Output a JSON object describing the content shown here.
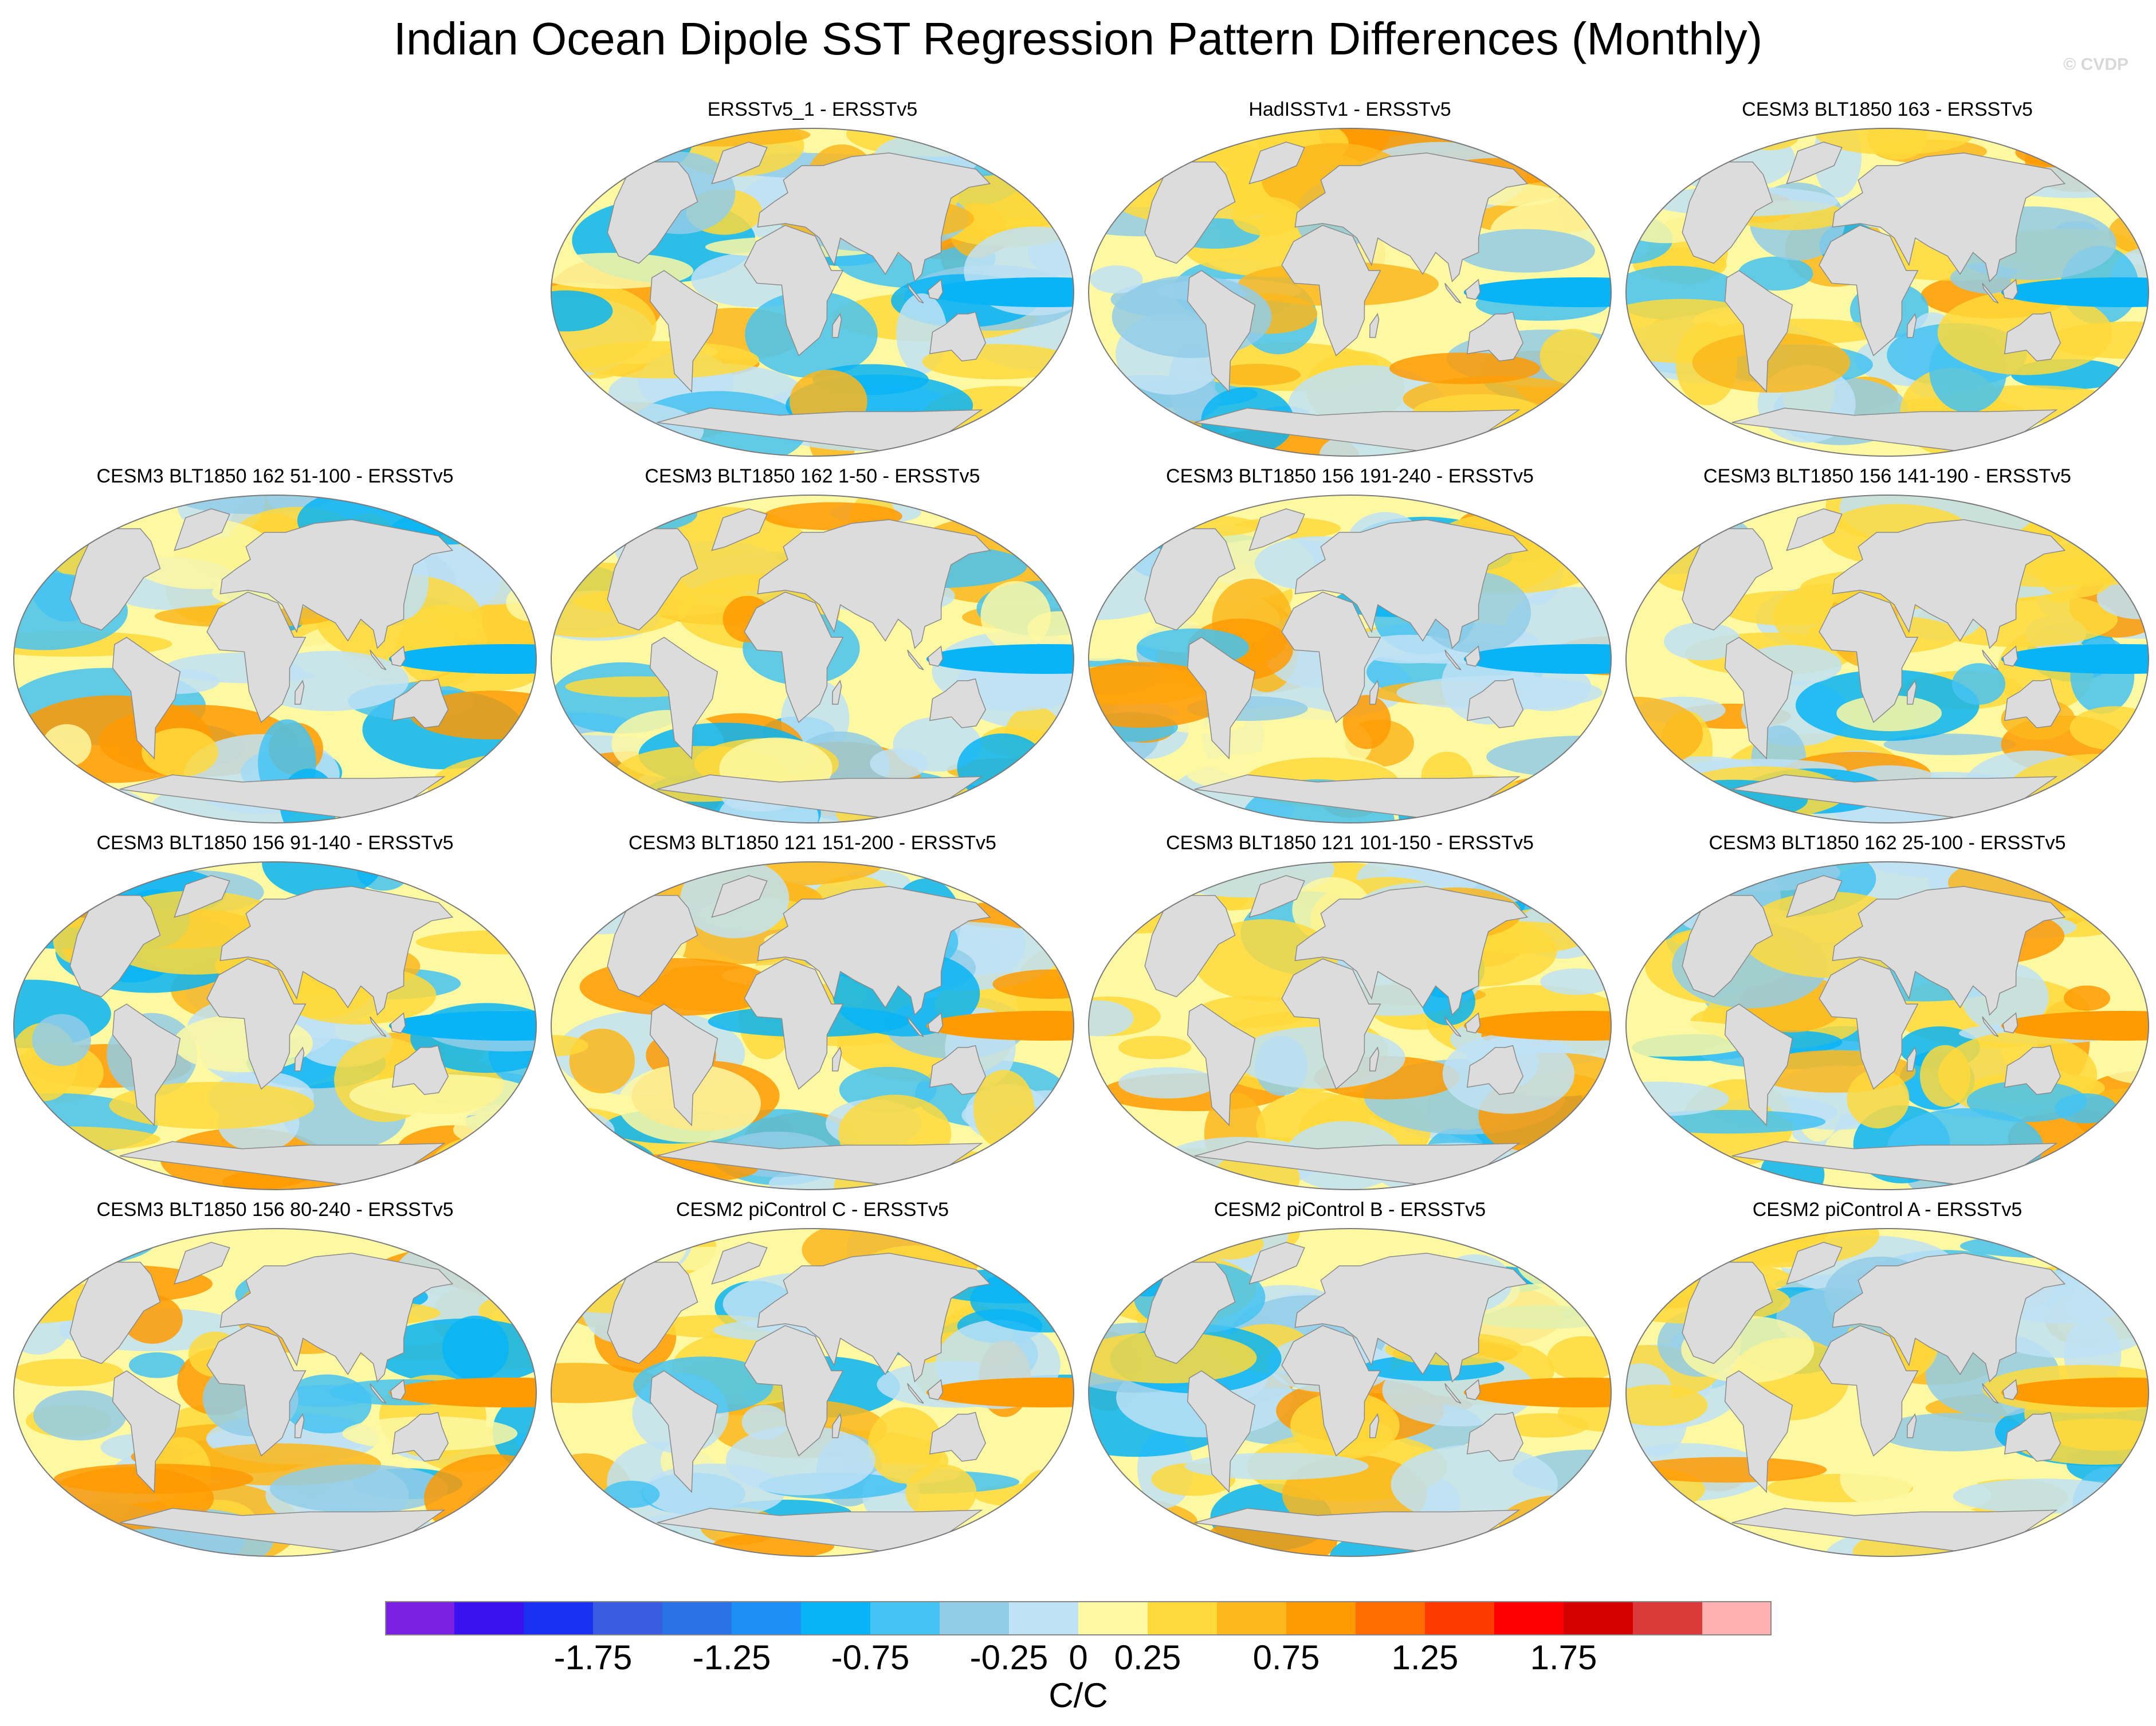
{
  "title": "Indian Ocean Dipole SST Regression Pattern Differences (Monthly)",
  "watermark": "© CVDP",
  "chart_data": {
    "type": "heatmap",
    "projection": "Robinson-like global map, Pacific centered",
    "panels": [
      {
        "title": "ERSSTv5_1 - ERSSTv5",
        "pattern_seed": 3
      },
      {
        "title": "HadISSTv1 - ERSSTv5",
        "pattern_seed": 7
      },
      {
        "title": "CESM3 BLT1850 163 - ERSSTv5",
        "pattern_seed": 11
      },
      {
        "title": "CESM3 BLT1850 162 51-100 - ERSSTv5",
        "pattern_seed": 13
      },
      {
        "title": "CESM3 BLT1850 162 1-50 - ERSSTv5",
        "pattern_seed": 17
      },
      {
        "title": "CESM3 BLT1850 156 191-240 - ERSSTv5",
        "pattern_seed": 19
      },
      {
        "title": "CESM3 BLT1850 156 141-190 - ERSSTv5",
        "pattern_seed": 23
      },
      {
        "title": "CESM3 BLT1850 156 91-140 - ERSSTv5",
        "pattern_seed": 29
      },
      {
        "title": "CESM3 BLT1850 121 151-200 - ERSSTv5",
        "pattern_seed": 31
      },
      {
        "title": "CESM3 BLT1850 121 101-150 - ERSSTv5",
        "pattern_seed": 37
      },
      {
        "title": "CESM3 BLT1850 162 25-100 - ERSSTv5",
        "pattern_seed": 41
      },
      {
        "title": "CESM3 BLT1850 156 80-240 - ERSSTv5",
        "pattern_seed": 43
      },
      {
        "title": "CESM2 piControl C - ERSSTv5",
        "pattern_seed": 47
      },
      {
        "title": "CESM2 piControl B - ERSSTv5",
        "pattern_seed": 53
      },
      {
        "title": "CESM2 piControl A - ERSSTv5",
        "pattern_seed": 59
      }
    ],
    "colorbar": {
      "levels": [
        -2.0,
        -1.75,
        -1.5,
        -1.25,
        -1.0,
        -0.75,
        -0.5,
        -0.25,
        0,
        0.25,
        0.5,
        0.75,
        1.0,
        1.25,
        1.5,
        1.75,
        2.0
      ],
      "colors": [
        "#7b1fe0",
        "#3a12f0",
        "#1a30f0",
        "#3a5ce0",
        "#2a73e6",
        "#1e8ff5",
        "#08b4f5",
        "#45c3f2",
        "#92cde8",
        "#bfe2f4",
        "#fdf8a2",
        "#fed93b",
        "#fbb71c",
        "#fe9a02",
        "#ff6c00",
        "#ff3a00",
        "#ff0000",
        "#d50000",
        "#db3a3a",
        "#ffb0b0"
      ],
      "tick_labels": [
        "-1.75",
        "-1.25",
        "-0.75",
        "-0.25",
        "0",
        "0.25",
        "0.75",
        "1.25",
        "1.75"
      ],
      "tick_values": [
        -1.75,
        -1.25,
        -0.75,
        -0.25,
        0,
        0.25,
        0.75,
        1.25,
        1.75
      ],
      "units": "C/C"
    },
    "land_color": "#dcdcdc"
  }
}
